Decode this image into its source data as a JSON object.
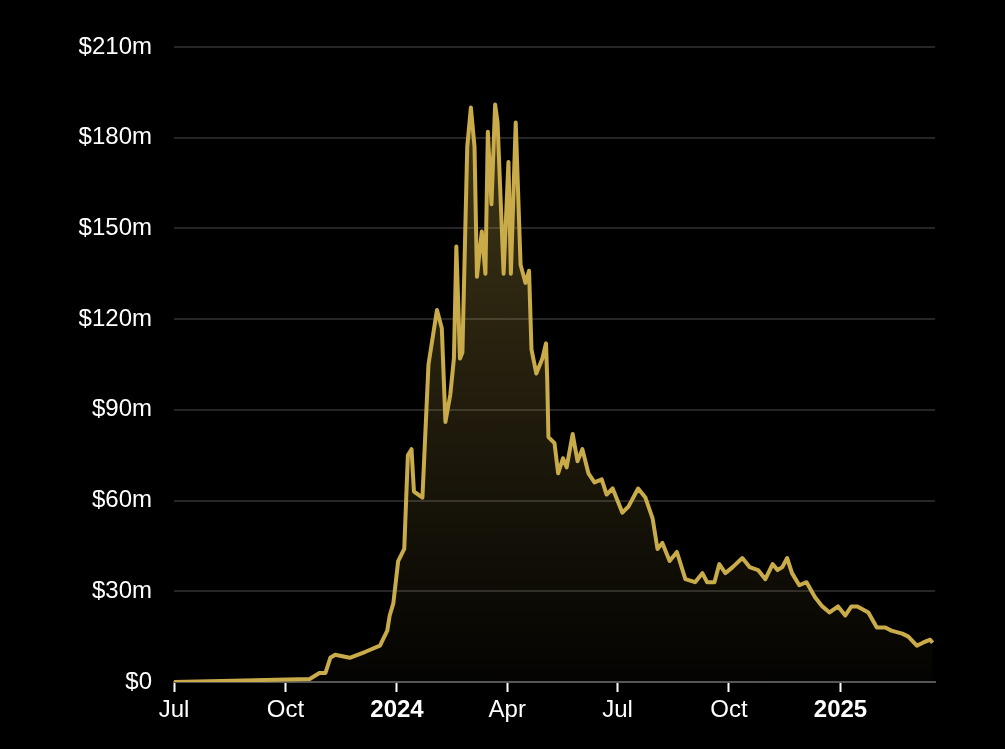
{
  "chart_data": {
    "type": "area",
    "x": [
      "2023-07-01",
      "2023-10-21",
      "2023-10-29",
      "2023-11-03",
      "2023-11-07",
      "2023-11-11",
      "2023-11-23",
      "2023-12-06",
      "2023-12-18",
      "2023-12-24",
      "2023-12-26",
      "2023-12-29",
      "2024-01-02",
      "2024-01-07",
      "2024-01-10",
      "2024-01-13",
      "2024-01-15",
      "2024-01-22",
      "2024-01-27",
      "2024-02-03",
      "2024-02-07",
      "2024-02-10",
      "2024-02-14",
      "2024-02-17",
      "2024-02-19",
      "2024-02-22",
      "2024-02-24",
      "2024-02-28",
      "2024-03-02",
      "2024-03-05",
      "2024-03-07",
      "2024-03-11",
      "2024-03-14",
      "2024-03-16",
      "2024-03-19",
      "2024-03-22",
      "2024-03-24",
      "2024-03-29",
      "2024-04-02",
      "2024-04-04",
      "2024-04-08",
      "2024-04-12",
      "2024-04-16",
      "2024-04-19",
      "2024-04-21",
      "2024-04-25",
      "2024-04-30",
      "2024-05-03",
      "2024-05-04",
      "2024-05-05",
      "2024-05-10",
      "2024-05-13",
      "2024-05-17",
      "2024-05-20",
      "2024-05-25",
      "2024-05-29",
      "2024-06-02",
      "2024-06-07",
      "2024-06-12",
      "2024-06-18",
      "2024-06-22",
      "2024-06-27",
      "2024-07-05",
      "2024-07-10",
      "2024-07-18",
      "2024-07-24",
      "2024-07-30",
      "2024-08-03",
      "2024-08-07",
      "2024-08-13",
      "2024-08-19",
      "2024-08-26",
      "2024-09-03",
      "2024-09-09",
      "2024-09-13",
      "2024-09-19",
      "2024-09-23",
      "2024-09-28",
      "2024-10-04",
      "2024-10-12",
      "2024-10-18",
      "2024-10-25",
      "2024-10-31",
      "2024-11-06",
      "2024-11-10",
      "2024-11-14",
      "2024-11-18",
      "2024-11-22",
      "2024-11-28",
      "2024-12-04",
      "2024-12-11",
      "2024-12-17",
      "2024-12-23",
      "2024-12-30",
      "2025-01-05",
      "2025-01-10",
      "2025-01-15",
      "2025-01-24",
      "2025-01-31",
      "2025-02-07",
      "2025-02-12",
      "2025-02-21",
      "2025-02-26",
      "2025-03-05",
      "2025-03-10",
      "2025-03-16",
      "2025-03-18"
    ],
    "series": [
      {
        "color": "#c9ab4a",
        "values": [
          0,
          1,
          3,
          3,
          8,
          9,
          8,
          10,
          12,
          17,
          22,
          26,
          40,
          44,
          75,
          77,
          63,
          61,
          105,
          123,
          117,
          86,
          95,
          107,
          144,
          107,
          109,
          177,
          190,
          177,
          134,
          149,
          135,
          182,
          158,
          191,
          185,
          135,
          172,
          135,
          185,
          138,
          132,
          136,
          110,
          102,
          107,
          112,
          100,
          81,
          79,
          69,
          74,
          71,
          82,
          73,
          77,
          69,
          66,
          67,
          62,
          64,
          56,
          58,
          64,
          61,
          54,
          44,
          46,
          40,
          43,
          34,
          33,
          36,
          33,
          33,
          39,
          36,
          38,
          41,
          38,
          37,
          34,
          39,
          37,
          38,
          41,
          36,
          32,
          33,
          28,
          25,
          23,
          25,
          22,
          25,
          25,
          23,
          18,
          18,
          17,
          16,
          15,
          12,
          13,
          14,
          13
        ]
      }
    ],
    "xlim": [
      "2023-07-01",
      "2025-03-20"
    ],
    "xticks": [
      {
        "value": "2023-07-01",
        "label": "Jul"
      },
      {
        "value": "2023-10-01",
        "label": "Oct"
      },
      {
        "value": "2024-01-01",
        "label": "2024"
      },
      {
        "value": "2024-04-01",
        "label": "Apr"
      },
      {
        "value": "2024-07-01",
        "label": "Jul"
      },
      {
        "value": "2024-10-01",
        "label": "Oct"
      },
      {
        "value": "2025-01-01",
        "label": "2025"
      }
    ],
    "ylim": [
      0,
      210
    ],
    "yticks": [
      {
        "value": 0,
        "label": "$0"
      },
      {
        "value": 30,
        "label": "$30m"
      },
      {
        "value": 60,
        "label": "$60m"
      },
      {
        "value": 90,
        "label": "$90m"
      },
      {
        "value": 120,
        "label": "$120m"
      },
      {
        "value": 150,
        "label": "$150m"
      },
      {
        "value": 180,
        "label": "$180m"
      },
      {
        "value": 210,
        "label": "$210m"
      }
    ],
    "grid": "y",
    "legend": false,
    "marker": "none",
    "line_style": "solid"
  }
}
